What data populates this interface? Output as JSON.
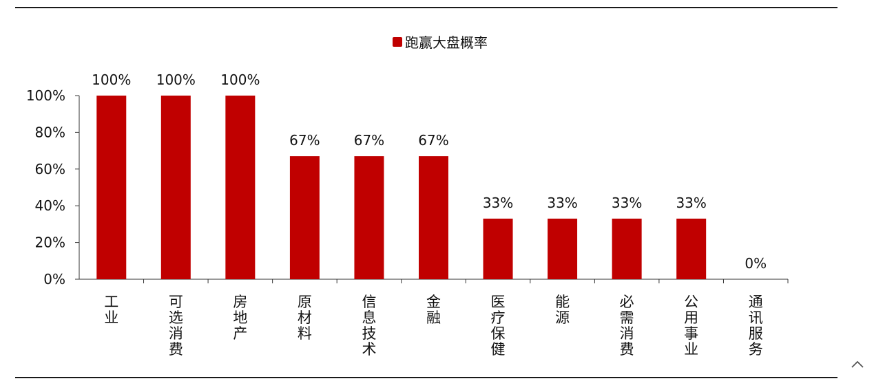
{
  "chart_data": {
    "type": "bar",
    "categories": [
      "工业",
      "可选消费",
      "房地产",
      "原材料",
      "信息技术",
      "金融",
      "医疗保健",
      "能源",
      "必需消费",
      "公用事业",
      "通讯服务"
    ],
    "series": [
      {
        "name": "跑赢大盘概率",
        "values": [
          100,
          100,
          100,
          67,
          67,
          67,
          33,
          33,
          33,
          33,
          0
        ],
        "color": "#C00000"
      }
    ],
    "data_labels": [
      "100%",
      "100%",
      "100%",
      "67%",
      "67%",
      "67%",
      "33%",
      "33%",
      "33%",
      "33%",
      "0%"
    ],
    "ylim": [
      0,
      100
    ],
    "yticks": [
      "0%",
      "20%",
      "40%",
      "60%",
      "80%",
      "100%"
    ],
    "legend_position": "top-center",
    "grid": false
  },
  "ui": {
    "collapse_icon": "chevron-up-icon"
  }
}
